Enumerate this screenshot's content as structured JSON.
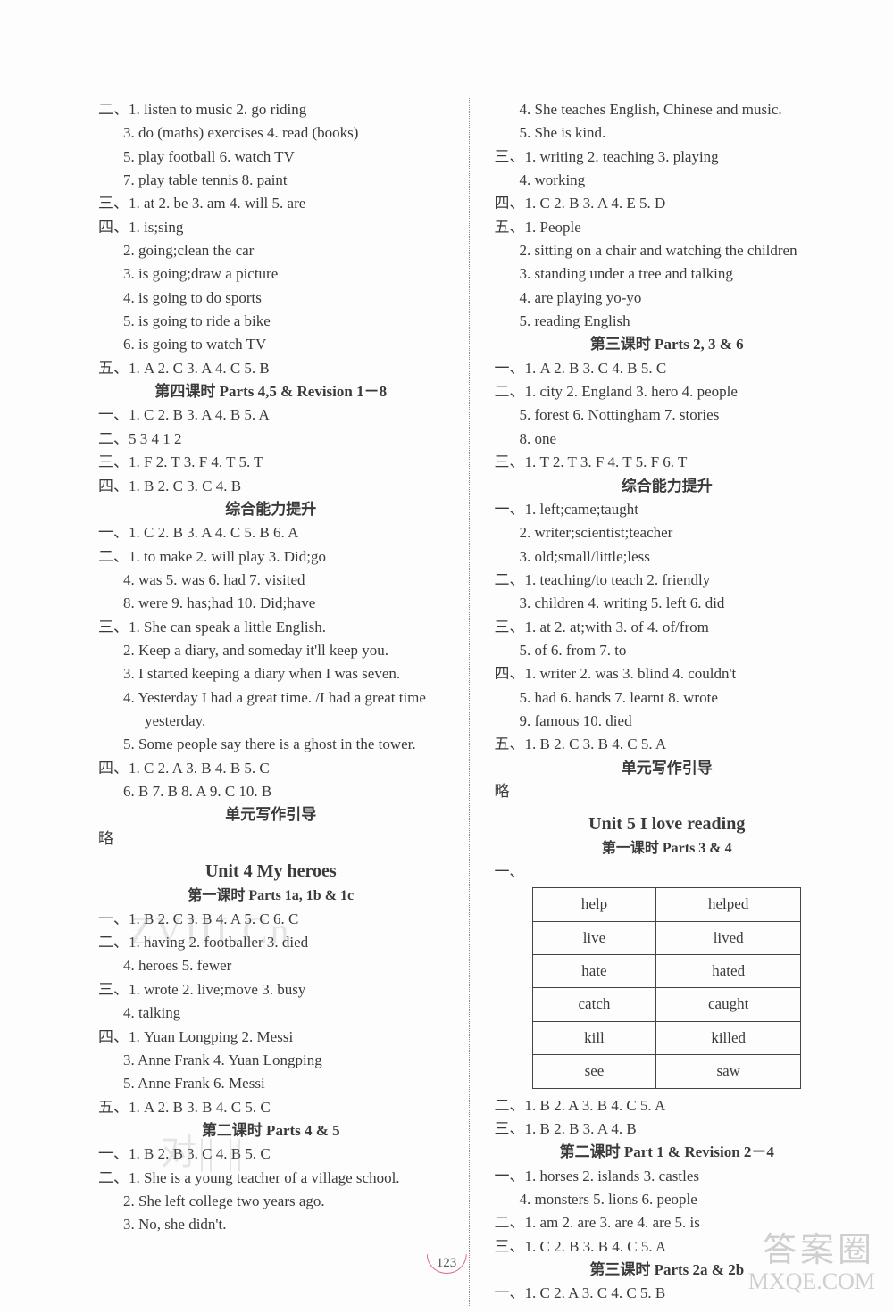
{
  "pageNumber": "123",
  "watermarks": {
    "w1": "ZVIII.Cn",
    "w2": "对|| ||",
    "w3a": "答案圈",
    "w3b": "MXQE.COM"
  },
  "left": {
    "l01": "二、1. listen to music  2. go riding",
    "l02": "3. do (maths) exercises  4. read (books)",
    "l03": "5. play football  6. watch TV",
    "l04": "7. play table tennis  8. paint",
    "l05": "三、1. at  2. be  3. am  4. will  5. are",
    "l06": "四、1. is;sing",
    "l07": "2. going;clean the car",
    "l08": "3. is going;draw a picture",
    "l09": "4. is going to do sports",
    "l10": "5. is going to ride a bike",
    "l11": "6. is going to watch TV",
    "l12": "五、1. A  2. C  3. A  4. C  5. B",
    "h1": "第四课时  Parts 4,5 & Revision 1－8",
    "l13": "一、1. C  2. B  3. A  4. B  5. A",
    "l14": "二、5  3  4  1  2",
    "l15": "三、1. F  2. T  3. F  4. T  5. T",
    "l16": "四、1. B  2. C  3. C  4. B",
    "h2": "综合能力提升",
    "l17": "一、1. C  2. B  3. A  4. C  5. B  6. A",
    "l18": "二、1. to make  2. will play  3. Did;go",
    "l19": "4. was  5. was  6. had  7. visited",
    "l20": "8. were  9. has;had  10. Did;have",
    "l21": "三、1. She can speak a little English.",
    "l22": "2. Keep a diary, and someday it'll keep you.",
    "l23": "3. I started keeping a diary when I was seven.",
    "l24": "4. Yesterday I had a great time. /I had a great time yesterday.",
    "l25": "5. Some people say there is a ghost in the tower.",
    "l26": "四、1. C  2. A  3. B  4. B  5. C",
    "l27": "6. B  7. B  8. A  9. C  10. B",
    "h3": "单元写作引导",
    "l28": "略",
    "unit4": "Unit 4   My heroes",
    "u4s": "第一课时   Parts 1a, 1b & 1c",
    "l29": "一、1. B  2. C  3. B  4. A  5. C  6. C",
    "l30": "二、1. having  2. footballer  3. died",
    "l31": "4. heroes  5. fewer",
    "l32": "三、1. wrote  2. live;move  3. busy",
    "l33": "4. talking",
    "l34": "四、1. Yuan Longping  2. Messi",
    "l35": "3. Anne Frank  4. Yuan Longping",
    "l36": "5. Anne Frank  6. Messi",
    "l37": "五、1. A  2. B  3. B  4. C  5. C",
    "h4": "第二课时   Parts 4 & 5",
    "l38": "一、1. B  2. B  3. C  4. B  5. C",
    "l39": "二、1. She is a young teacher of a village school.",
    "l40": "2. She left college two years ago.",
    "l41": "3. No, she didn't."
  },
  "right": {
    "r01": "4. She teaches English, Chinese and music.",
    "r02": "5. She is kind.",
    "r03": "三、1. writing  2. teaching  3. playing",
    "r04": "4. working",
    "r05": "四、1. C  2. B  3. A  4. E  5. D",
    "r06": "五、1. People",
    "r07": "2. sitting on a chair and watching the children",
    "r08": "3. standing under a tree and talking",
    "r09": "4. are playing yo-yo",
    "r10": "5. reading English",
    "h1": "第三课时  Parts 2, 3 & 6",
    "r11": "一、1. A  2. B  3. C  4. B  5. C",
    "r12": "二、1. city  2. England  3. hero  4. people",
    "r13": "5. forest  6. Nottingham  7. stories",
    "r14": "8. one",
    "r15": "三、1. T  2. T  3. F  4. T  5. F  6. T",
    "h2": "综合能力提升",
    "r16": "一、1. left;came;taught",
    "r17": "2. writer;scientist;teacher",
    "r18": "3. old;small/little;less",
    "r19": "二、1. teaching/to teach  2. friendly",
    "r20": "3. children  4. writing  5. left  6. did",
    "r21": "三、1. at  2. at;with  3. of  4. of/from",
    "r22": "5. of  6. from  7. to",
    "r23": "四、1. writer  2. was  3. blind  4. couldn't",
    "r24": "5. had  6. hands  7. learnt  8. wrote",
    "r25": "9. famous  10. died",
    "r26": "五、1. B  2. C  3. B  4. C  5. A",
    "h3": "单元写作引导",
    "r27": "略",
    "unit5": "Unit 5   I love reading",
    "u5s": "第一课时   Parts 3 & 4",
    "r28": "一、",
    "table": [
      [
        "help",
        "helped"
      ],
      [
        "live",
        "lived"
      ],
      [
        "hate",
        "hated"
      ],
      [
        "catch",
        "caught"
      ],
      [
        "kill",
        "killed"
      ],
      [
        "see",
        "saw"
      ]
    ],
    "r29": "二、1. B  2. A  3. B  4. C  5. A",
    "r30": "三、1. B  2. B  3. A  4. B",
    "h4": "第二课时  Part 1 & Revision 2－4",
    "r31": "一、1. horses  2. islands  3. castles",
    "r32": "4. monsters  5. lions  6. people",
    "r33": "二、1. am  2. are  3. are  4. are  5. is",
    "r34": "三、1. C  2. B  3. B  4. C  5. A",
    "h5": "第三课时  Parts 2a & 2b",
    "r35": "一、1. C  2. A  3. C  4. C  5. B"
  }
}
